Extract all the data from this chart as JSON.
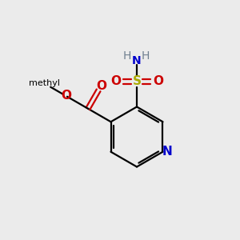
{
  "bg_color": "#ebebeb",
  "ring_color": "#000000",
  "n_color": "#0000cc",
  "o_color": "#cc0000",
  "s_color": "#aaaa00",
  "h_color": "#708090",
  "lw": 1.6,
  "fig_size": [
    3.0,
    3.0
  ],
  "dpi": 100,
  "xlim": [
    0,
    10
  ],
  "ylim": [
    0,
    10
  ]
}
